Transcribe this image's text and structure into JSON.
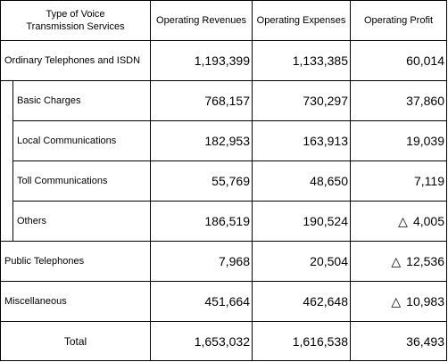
{
  "headers": {
    "type": "Type of Voice\nTransmission Services",
    "revenues": "Operating Revenues",
    "expenses": "Operating Expenses",
    "profit": "Operating Profit"
  },
  "rows": [
    {
      "label": "Ordinary Telephones and ISDN",
      "revenues": "1,193,399",
      "expenses": "1,133,385",
      "profit": "60,014"
    },
    {
      "label": "Basic Charges",
      "revenues": "768,157",
      "expenses": "730,297",
      "profit": "37,860"
    },
    {
      "label": "Local Communications",
      "revenues": "182,953",
      "expenses": "163,913",
      "profit": "19,039"
    },
    {
      "label": "Toll Communications",
      "revenues": "55,769",
      "expenses": "48,650",
      "profit": "7,119"
    },
    {
      "label": "Others",
      "revenues": "186,519",
      "expenses": "190,524",
      "profit": "4,005",
      "negative_mark": "△"
    },
    {
      "label": "Public Telephones",
      "revenues": "7,968",
      "expenses": "20,504",
      "profit": "12,536",
      "negative_mark": "△"
    },
    {
      "label": "Miscellaneous",
      "revenues": "451,664",
      "expenses": "462,648",
      "profit": "10,983",
      "negative_mark": "△"
    },
    {
      "label": "Total",
      "revenues": "1,653,032",
      "expenses": "1,616,538",
      "profit": "36,493"
    }
  ]
}
